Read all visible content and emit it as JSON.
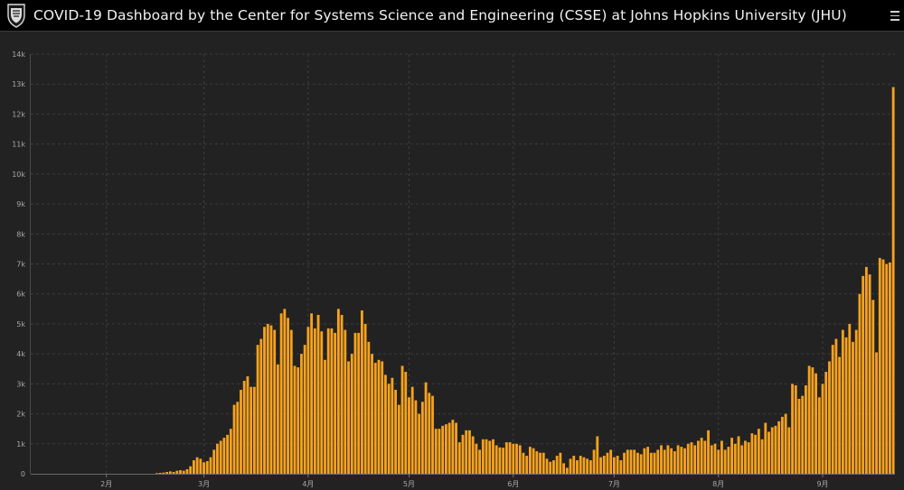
{
  "header": {
    "title": "COVID-19 Dashboard by the Center for Systems Science and Engineering (CSSE) at Johns Hopkins University (JHU)",
    "logo_icon": "jhu-shield-icon",
    "menu_icon": "hamburger-menu-icon",
    "background": "#000000"
  },
  "chart_data": {
    "type": "bar",
    "title": "",
    "xlabel": "",
    "ylabel": "",
    "ylim": [
      0,
      14000
    ],
    "yticks": [
      0,
      1000,
      2000,
      3000,
      4000,
      5000,
      6000,
      7000,
      8000,
      9000,
      10000,
      11000,
      12000,
      13000,
      14000
    ],
    "ytick_labels": [
      "0",
      "1k",
      "2k",
      "3k",
      "4k",
      "5k",
      "6k",
      "7k",
      "8k",
      "9k",
      "10k",
      "11k",
      "12k",
      "13k",
      "14k"
    ],
    "xtick_labels": [
      {
        "label": "2月",
        "index": 22
      },
      {
        "label": "3月",
        "index": 51
      },
      {
        "label": "4月",
        "index": 82
      },
      {
        "label": "5月",
        "index": 112
      },
      {
        "label": "6月",
        "index": 143
      },
      {
        "label": "7月",
        "index": 173
      },
      {
        "label": "8月",
        "index": 204
      },
      {
        "label": "9月",
        "index": 235
      }
    ],
    "bar_color": "#f7a21d",
    "grid": true,
    "series": [
      {
        "values": [
          0,
          0,
          0,
          0,
          0,
          0,
          0,
          0,
          0,
          0,
          0,
          0,
          0,
          0,
          0,
          0,
          0,
          0,
          0,
          0,
          0,
          0,
          0,
          0,
          0,
          0,
          0,
          0,
          0,
          0,
          0,
          0,
          0,
          0,
          0,
          0,
          0,
          20,
          30,
          40,
          60,
          80,
          60,
          100,
          120,
          100,
          150,
          250,
          450,
          550,
          500,
          380,
          420,
          550,
          800,
          1000,
          1100,
          1200,
          1300,
          1500,
          2300,
          2400,
          2800,
          3100,
          3250,
          2900,
          2900,
          4300,
          4500,
          4900,
          5000,
          4950,
          4800,
          3650,
          5350,
          5500,
          5200,
          4800,
          3600,
          3550,
          4000,
          4300,
          4900,
          5350,
          4850,
          5300,
          4750,
          3800,
          4850,
          4850,
          4700,
          5500,
          5300,
          4800,
          3750,
          4000,
          4700,
          4700,
          5450,
          5000,
          4400,
          4000,
          3700,
          3800,
          3750,
          3300,
          3000,
          3200,
          2800,
          2300,
          3600,
          3400,
          2550,
          2900,
          2450,
          2000,
          2400,
          3050,
          2700,
          2600,
          1500,
          1500,
          1600,
          1650,
          1700,
          1800,
          1700,
          1050,
          1300,
          1450,
          1450,
          1250,
          1000,
          800,
          1150,
          1150,
          1100,
          1150,
          950,
          880,
          870,
          1050,
          1050,
          1000,
          1000,
          950,
          700,
          600,
          900,
          850,
          750,
          700,
          700,
          500,
          400,
          450,
          600,
          700,
          350,
          200,
          500,
          600,
          450,
          600,
          550,
          500,
          450,
          800,
          1250,
          550,
          600,
          700,
          800,
          550,
          600,
          450,
          700,
          800,
          800,
          800,
          700,
          650,
          850,
          900,
          700,
          700,
          800,
          950,
          800,
          950,
          850,
          750,
          950,
          900,
          850,
          1000,
          1050,
          950,
          1100,
          1200,
          1100,
          1450,
          950,
          1000,
          800,
          1100,
          800,
          900,
          1200,
          1000,
          1250,
          950,
          1100,
          1050,
          1350,
          1300,
          1500,
          1150,
          1700,
          1400,
          1550,
          1600,
          1750,
          1900,
          2000,
          1550,
          3000,
          2950,
          2500,
          2600,
          2950,
          3600,
          3550,
          3350,
          2550,
          3000,
          3400,
          3750,
          4300,
          4500,
          3900,
          4800,
          4550,
          5000,
          4400,
          4800,
          6000,
          6600,
          6900,
          6650,
          5800,
          4050,
          7200,
          7150,
          7000,
          7050,
          12900
        ]
      }
    ]
  }
}
